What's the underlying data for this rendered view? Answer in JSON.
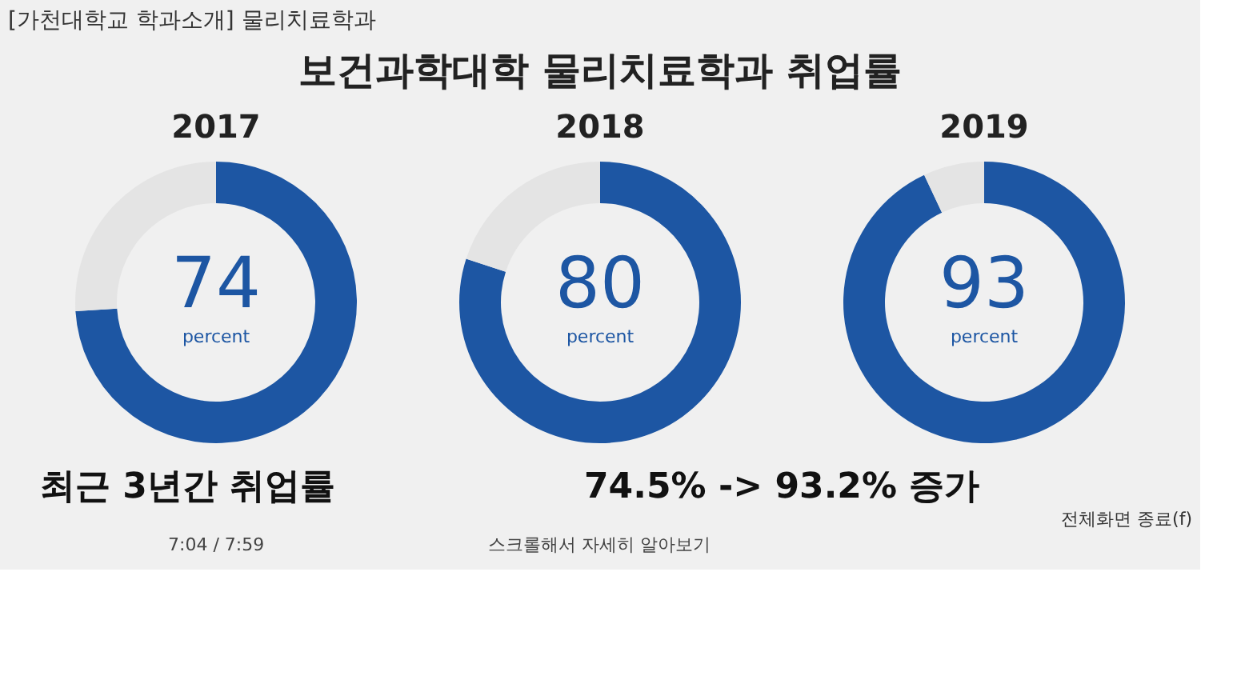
{
  "chart_data": [
    {
      "type": "other",
      "title": "보건과학대학 물리치료학과 취업률",
      "annotations": [
        "[가천대학교 학과소개] 물리치료학과",
        "최근 3년간 취업률",
        "74.5% -> 93.2% 증가",
        "7:04 / 7:59",
        "스크롤해서 자세히 알아보기",
        "전체화면 종료(f)"
      ]
    },
    {
      "type": "donut",
      "title": "2017",
      "categories": [
        null,
        null
      ],
      "values": [
        74,
        26
      ],
      "colors": [
        "#1d56a3",
        "#e4e4e4"
      ],
      "value_labels": [
        "74",
        null
      ],
      "annotations": [
        "percent"
      ]
    },
    {
      "type": "donut",
      "title": "2018",
      "categories": [
        null,
        null
      ],
      "values": [
        80,
        20
      ],
      "colors": [
        "#1d56a3",
        "#e4e4e4"
      ],
      "value_labels": [
        "80",
        null
      ],
      "annotations": [
        "percent"
      ]
    },
    {
      "type": "donut",
      "title": "2019",
      "categories": [
        null,
        null
      ],
      "values": [
        93,
        7
      ],
      "colors": [
        "#1d56a3",
        "#e4e4e4"
      ],
      "value_labels": [
        "93",
        null
      ],
      "annotations": [
        "percent"
      ]
    }
  ]
}
